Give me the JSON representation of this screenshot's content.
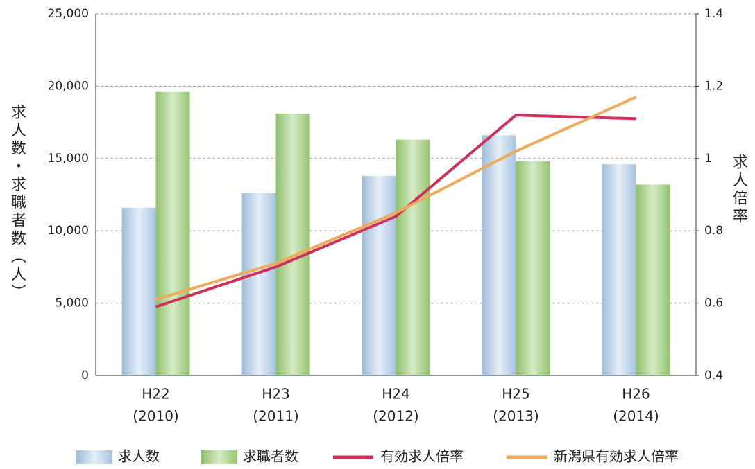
{
  "chart_data": {
    "type": "bar_line",
    "categories": [
      "H22",
      "H23",
      "H24",
      "H25",
      "H26"
    ],
    "category_sublabels": [
      "(2010)",
      "(2011)",
      "(2012)",
      "(2013)",
      "(2014)"
    ],
    "y_label": "求人数・求職者数（人）",
    "y2_label": "求人倍率",
    "series": [
      {
        "name": "求人数",
        "type": "bar",
        "color": "#b9cfe4",
        "values": [
          11600,
          12600,
          13800,
          16600,
          14600
        ]
      },
      {
        "name": "求職者数",
        "type": "bar",
        "color": "#a8cf88",
        "values": [
          19600,
          18100,
          16300,
          14800,
          13200
        ]
      },
      {
        "name": "有効求人倍率",
        "type": "line",
        "axis": "y2",
        "color": "#cf3159",
        "values": [
          0.59,
          0.7,
          0.84,
          1.12,
          1.11
        ]
      },
      {
        "name": "新潟県有効求人倍率",
        "type": "line",
        "axis": "y2",
        "color": "#f0aa5c",
        "values": [
          0.61,
          0.71,
          0.85,
          1.02,
          1.17
        ]
      }
    ],
    "ylim": [
      0,
      25000
    ],
    "yticks": [
      {
        "value": 0,
        "label": "0"
      },
      {
        "value": 5000,
        "label": "5,000"
      },
      {
        "value": 10000,
        "label": "10,000"
      },
      {
        "value": 15000,
        "label": "15,000"
      },
      {
        "value": 20000,
        "label": "20,000"
      },
      {
        "value": 25000,
        "label": "25,000"
      }
    ],
    "y2lim": [
      0.4,
      1.4
    ],
    "y2ticks": [
      0.4,
      0.6,
      0.8,
      1,
      1.2,
      1.4
    ],
    "grid": true
  }
}
